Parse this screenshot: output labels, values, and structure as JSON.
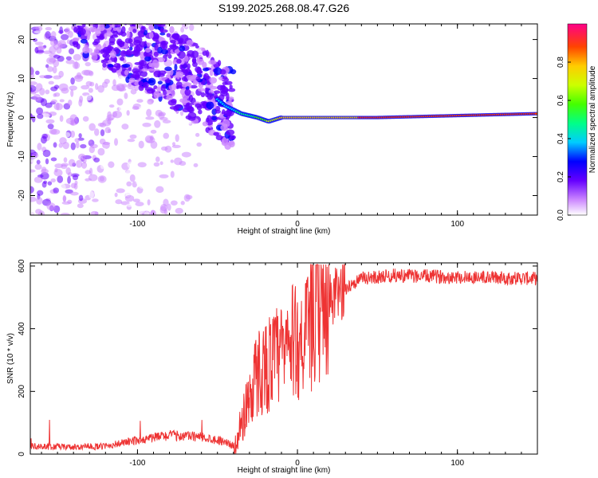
{
  "title": "S199.2025.268.08.47.G26",
  "chart_data": [
    {
      "type": "heatmap",
      "xlabel": "Height of straight line (km)",
      "ylabel": "Frequency (Hz)",
      "xlim": [
        -167,
        150
      ],
      "ylim": [
        -25,
        24
      ],
      "xticks": [
        -100,
        0,
        100
      ],
      "yticks": [
        -20,
        -10,
        0,
        10,
        20
      ],
      "colorbar": {
        "label": "Normalized spectral amplitude",
        "range": [
          0,
          1
        ],
        "ticks": [
          "0.0",
          "0.2",
          "0.4",
          "0.6",
          "0.8"
        ],
        "tick_values": [
          0,
          0.2,
          0.4,
          0.6,
          0.8
        ]
      },
      "ridge": {
        "x": [
          -60,
          -45,
          -35,
          -25,
          -18,
          -10,
          0,
          20,
          50,
          100,
          150
        ],
        "y": [
          8,
          3,
          1,
          0,
          -1,
          0,
          0,
          0,
          0,
          0.5,
          1
        ],
        "amplitude": [
          0.35,
          0.45,
          0.5,
          0.6,
          0.7,
          0.8,
          0.85,
          0.85,
          0.9,
          0.95,
          0.95
        ]
      }
    },
    {
      "type": "line",
      "xlabel": "Height of straight line (km)",
      "ylabel": "SNR (10 * v/v)",
      "xlim": [
        -167,
        150
      ],
      "ylim": [
        0,
        610
      ],
      "xticks": [
        -100,
        0,
        100
      ],
      "yticks": [
        0,
        200,
        400,
        600
      ],
      "color": "#ee3333",
      "trend": {
        "x": [
          -167,
          -140,
          -120,
          -100,
          -80,
          -60,
          -45,
          -38,
          -35,
          -30,
          -25,
          -20,
          -15,
          -10,
          -5,
          0,
          5,
          10,
          15,
          20,
          25,
          30,
          40,
          60,
          100,
          150
        ],
        "y": [
          25,
          22,
          25,
          45,
          60,
          55,
          40,
          20,
          100,
          190,
          260,
          280,
          300,
          320,
          350,
          360,
          380,
          420,
          450,
          480,
          510,
          530,
          560,
          570,
          565,
          560
        ]
      }
    }
  ]
}
